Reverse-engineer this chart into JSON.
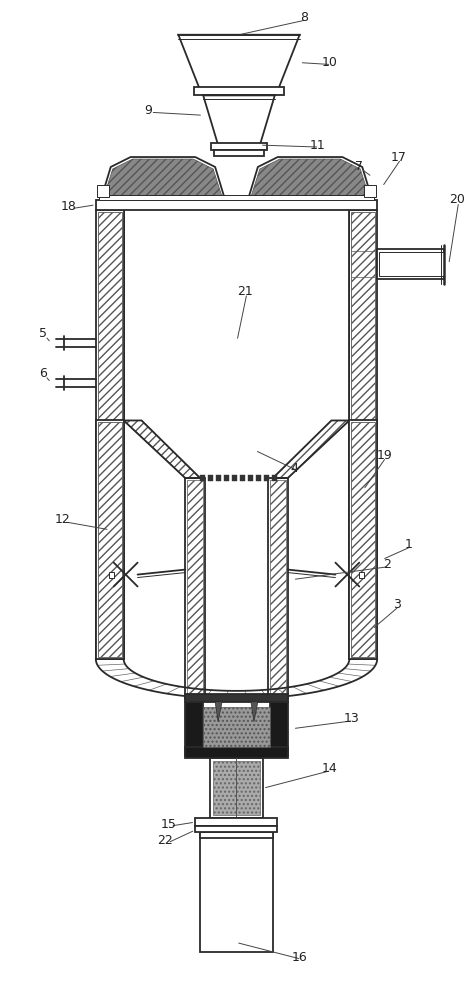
{
  "fig_width": 4.73,
  "fig_height": 10.0,
  "dpi": 100,
  "bg_color": "#ffffff",
  "lc": "#2a2a2a",
  "lw_main": 1.3,
  "lw_thin": 0.7
}
